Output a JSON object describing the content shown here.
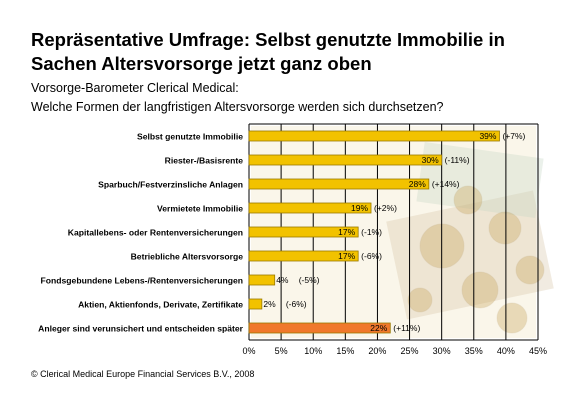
{
  "title": "Repräsentative Umfrage: Selbst genutzte Immobilie in Sachen Altersvorsorge jetzt ganz oben",
  "subtitle_1": "Vorsorge-Barometer Clerical Medical:",
  "subtitle_2": "Welche Formen der langfristigen Altersvorsorge werden sich durchsetzen?",
  "footer": "© Clerical Medical Europe Financial Services B.V., 2008",
  "colors": {
    "bar": "#f2c200",
    "bar_highlight": "#f0782c",
    "bar_stroke": "#9a7a00",
    "grid": "#000000"
  },
  "chart_data": {
    "type": "bar",
    "orientation": "horizontal",
    "categories": [
      "Selbst genutzte Immobilie",
      "Riester-/Basisrente",
      "Sparbuch/Festverzinsliche Anlagen",
      "Vermietete Immobilie",
      "Kapitallebens- oder Rentenversicherungen",
      "Betriebliche Altersvorsorge",
      "Fondsgebundene Lebens-/Rentenversicherungen",
      "Aktien, Aktienfonds, Derivate, Zertifikate",
      "Anleger sind verunsichert und entscheiden später"
    ],
    "values": [
      39,
      30,
      28,
      19,
      17,
      17,
      4,
      2,
      22
    ],
    "value_labels": [
      "39%",
      "30%",
      "28%",
      "19%",
      "17%",
      "17%",
      "4%",
      "2%",
      "22%"
    ],
    "change_labels": [
      "(+7%)",
      "(-11%)",
      "(+14%)",
      "(+2%)",
      "(-1%)",
      "(-6%)",
      "(-5%)",
      "(-6%)",
      "(+11%)"
    ],
    "highlight_index": 8,
    "xlim": [
      0,
      45
    ],
    "xticks": [
      0,
      5,
      10,
      15,
      20,
      25,
      30,
      35,
      40,
      45
    ],
    "xtick_labels": [
      "0%",
      "5%",
      "10%",
      "15%",
      "20%",
      "25%",
      "30%",
      "35%",
      "40%",
      "45%"
    ],
    "grid": true,
    "xlabel": "",
    "ylabel": ""
  }
}
